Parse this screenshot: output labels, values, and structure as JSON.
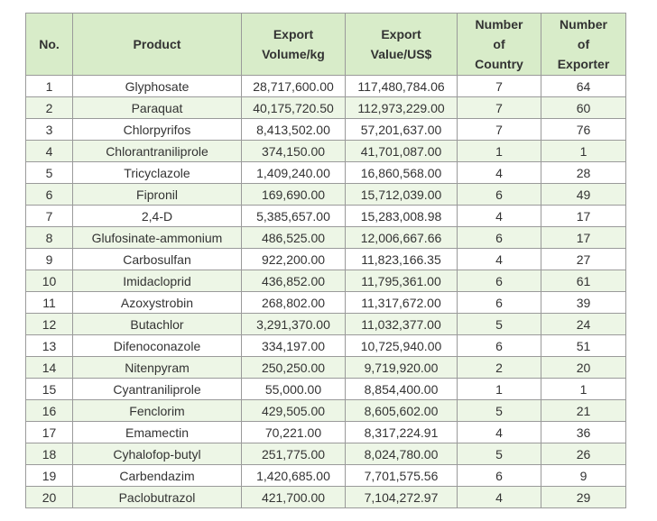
{
  "table": {
    "headers": {
      "no": "No.",
      "product": "Product",
      "volume_l1": "Export",
      "volume_l2": "Volume/kg",
      "value_l1": "Export",
      "value_l2": "Value/US$",
      "country_l1": "Number",
      "country_l2": "of",
      "country_l3": "Country",
      "exporter_l1": "Number",
      "exporter_l2": "of",
      "exporter_l3": "Exporter"
    },
    "rows": [
      {
        "no": "1",
        "product": "Glyphosate",
        "volume": "28,717,600.00",
        "value": "117,480,784.06",
        "countries": "7",
        "exporters": "64"
      },
      {
        "no": "2",
        "product": "Paraquat",
        "volume": "40,175,720.50",
        "value": "112,973,229.00",
        "countries": "7",
        "exporters": "60"
      },
      {
        "no": "3",
        "product": "Chlorpyrifos",
        "volume": "8,413,502.00",
        "value": "57,201,637.00",
        "countries": "7",
        "exporters": "76"
      },
      {
        "no": "4",
        "product": "Chlorantraniliprole",
        "volume": "374,150.00",
        "value": "41,701,087.00",
        "countries": "1",
        "exporters": "1"
      },
      {
        "no": "5",
        "product": "Tricyclazole",
        "volume": "1,409,240.00",
        "value": "16,860,568.00",
        "countries": "4",
        "exporters": "28"
      },
      {
        "no": "6",
        "product": "Fipronil",
        "volume": "169,690.00",
        "value": "15,712,039.00",
        "countries": "6",
        "exporters": "49"
      },
      {
        "no": "7",
        "product": "2,4-D",
        "volume": "5,385,657.00",
        "value": "15,283,008.98",
        "countries": "4",
        "exporters": "17"
      },
      {
        "no": "8",
        "product": "Glufosinate-ammonium",
        "volume": "486,525.00",
        "value": "12,006,667.66",
        "countries": "6",
        "exporters": "17"
      },
      {
        "no": "9",
        "product": "Carbosulfan",
        "volume": "922,200.00",
        "value": "11,823,166.35",
        "countries": "4",
        "exporters": "27"
      },
      {
        "no": "10",
        "product": "Imidacloprid",
        "volume": "436,852.00",
        "value": "11,795,361.00",
        "countries": "6",
        "exporters": "61"
      },
      {
        "no": "11",
        "product": "Azoxystrobin",
        "volume": "268,802.00",
        "value": "11,317,672.00",
        "countries": "6",
        "exporters": "39"
      },
      {
        "no": "12",
        "product": "Butachlor",
        "volume": "3,291,370.00",
        "value": "11,032,377.00",
        "countries": "5",
        "exporters": "24"
      },
      {
        "no": "13",
        "product": "Difenoconazole",
        "volume": "334,197.00",
        "value": "10,725,940.00",
        "countries": "6",
        "exporters": "51"
      },
      {
        "no": "14",
        "product": "Nitenpyram",
        "volume": "250,250.00",
        "value": "9,719,920.00",
        "countries": "2",
        "exporters": "20"
      },
      {
        "no": "15",
        "product": "Cyantraniliprole",
        "volume": "55,000.00",
        "value": "8,854,400.00",
        "countries": "1",
        "exporters": "1"
      },
      {
        "no": "16",
        "product": "Fenclorim",
        "volume": "429,505.00",
        "value": "8,605,602.00",
        "countries": "5",
        "exporters": "21"
      },
      {
        "no": "17",
        "product": "Emamectin",
        "volume": "70,221.00",
        "value": "8,317,224.91",
        "countries": "4",
        "exporters": "36"
      },
      {
        "no": "18",
        "product": "Cyhalofop-butyl",
        "volume": "251,775.00",
        "value": "8,024,780.00",
        "countries": "5",
        "exporters": "26"
      },
      {
        "no": "19",
        "product": "Carbendazim",
        "volume": "1,420,685.00",
        "value": "7,701,575.56",
        "countries": "6",
        "exporters": "9"
      },
      {
        "no": "20",
        "product": "Paclobutrazol",
        "volume": "421,700.00",
        "value": "7,104,272.97",
        "countries": "4",
        "exporters": "29"
      }
    ]
  }
}
